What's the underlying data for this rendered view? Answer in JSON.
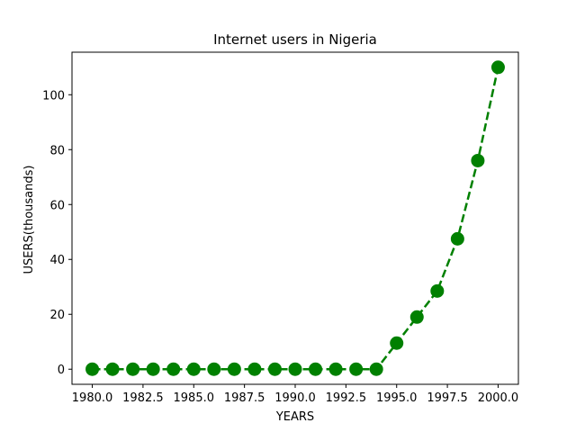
{
  "chart_data": {
    "type": "line",
    "title": "Internet users in Nigeria",
    "xlabel": "YEARS",
    "ylabel": "USERS(thousands)",
    "xlim": [
      1979.0,
      2001.0
    ],
    "ylim": [
      -5.5,
      115.5
    ],
    "xticks": [
      1980.0,
      1982.5,
      1985.0,
      1987.5,
      1990.0,
      1992.5,
      1995.0,
      1997.5,
      2000.0
    ],
    "xtick_labels": [
      "1980.0",
      "1982.5",
      "1985.0",
      "1987.5",
      "1990.0",
      "1992.5",
      "1995.0",
      "1997.5",
      "2000.0"
    ],
    "yticks": [
      0,
      20,
      40,
      60,
      80,
      100
    ],
    "ytick_labels": [
      "0",
      "20",
      "40",
      "60",
      "80",
      "100"
    ],
    "grid": false,
    "series": [
      {
        "color": "#008000",
        "line_style": "dashed",
        "marker": "circle",
        "x": [
          1980,
          1981,
          1982,
          1983,
          1984,
          1985,
          1986,
          1987,
          1988,
          1989,
          1990,
          1991,
          1992,
          1993,
          1994,
          1995,
          1996,
          1997,
          1998,
          1999,
          2000
        ],
        "y": [
          0,
          0,
          0,
          0,
          0,
          0,
          0,
          0,
          0,
          0,
          0,
          0,
          0,
          0,
          0,
          9.5,
          19,
          28.5,
          47.5,
          76,
          110
        ]
      }
    ]
  }
}
